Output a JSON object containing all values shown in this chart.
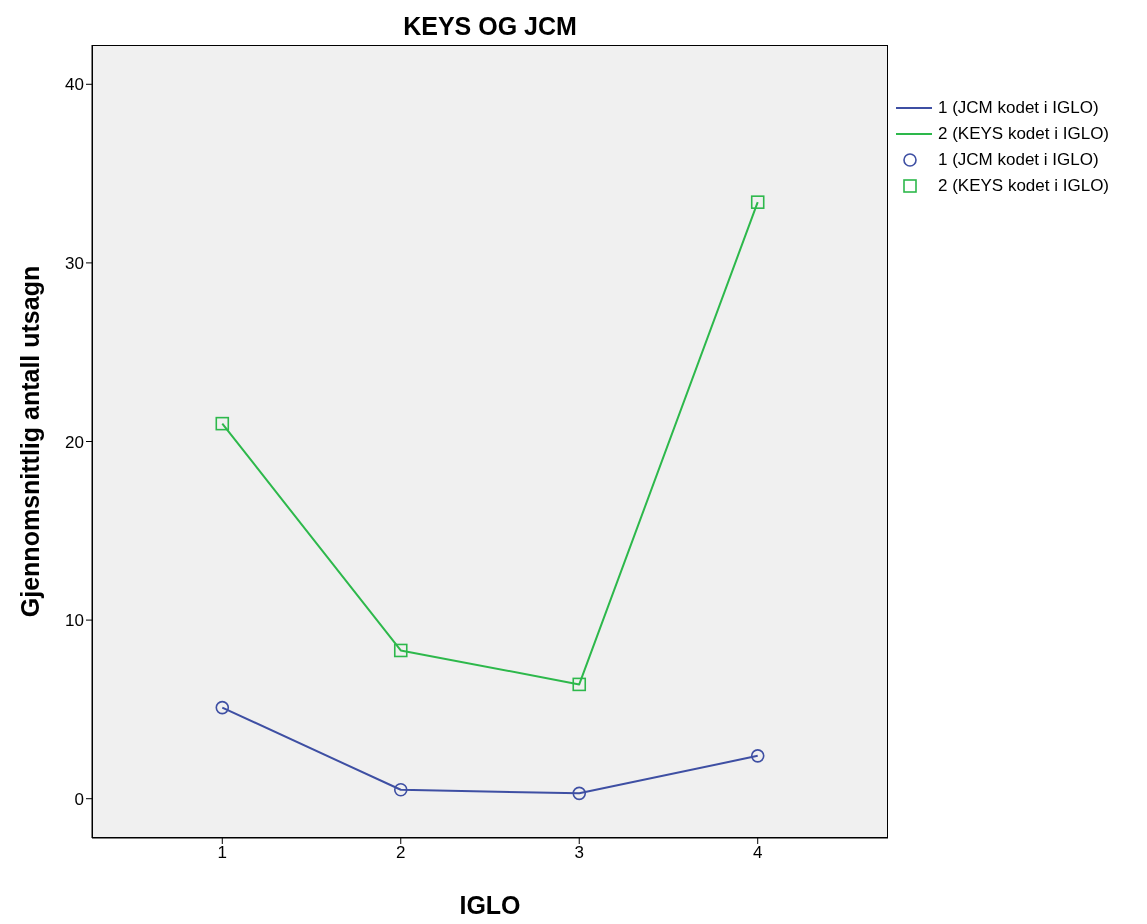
{
  "chart_data": {
    "type": "line",
    "title": "KEYS OG JCM",
    "xlabel": "IGLO",
    "ylabel": "Gjennomsnittlig antall utsagn",
    "x": [
      1,
      2,
      3,
      4
    ],
    "xlim": [
      0.27,
      4.73
    ],
    "xticks": [
      1,
      2,
      3,
      4
    ],
    "ylim": [
      -2.2,
      42.2
    ],
    "yticks": [
      0,
      10,
      20,
      30,
      40
    ],
    "grid": false,
    "legend": "right",
    "series": [
      {
        "name": "1 (JCM kodet i IGLO)",
        "color": "#3e4fa3",
        "marker": "circle",
        "values": [
          5.1,
          0.5,
          0.3,
          2.4
        ]
      },
      {
        "name": "2 (KEYS kodet i IGLO)",
        "color": "#2db84b",
        "marker": "square",
        "values": [
          21.0,
          8.3,
          6.4,
          33.4
        ]
      }
    ]
  }
}
